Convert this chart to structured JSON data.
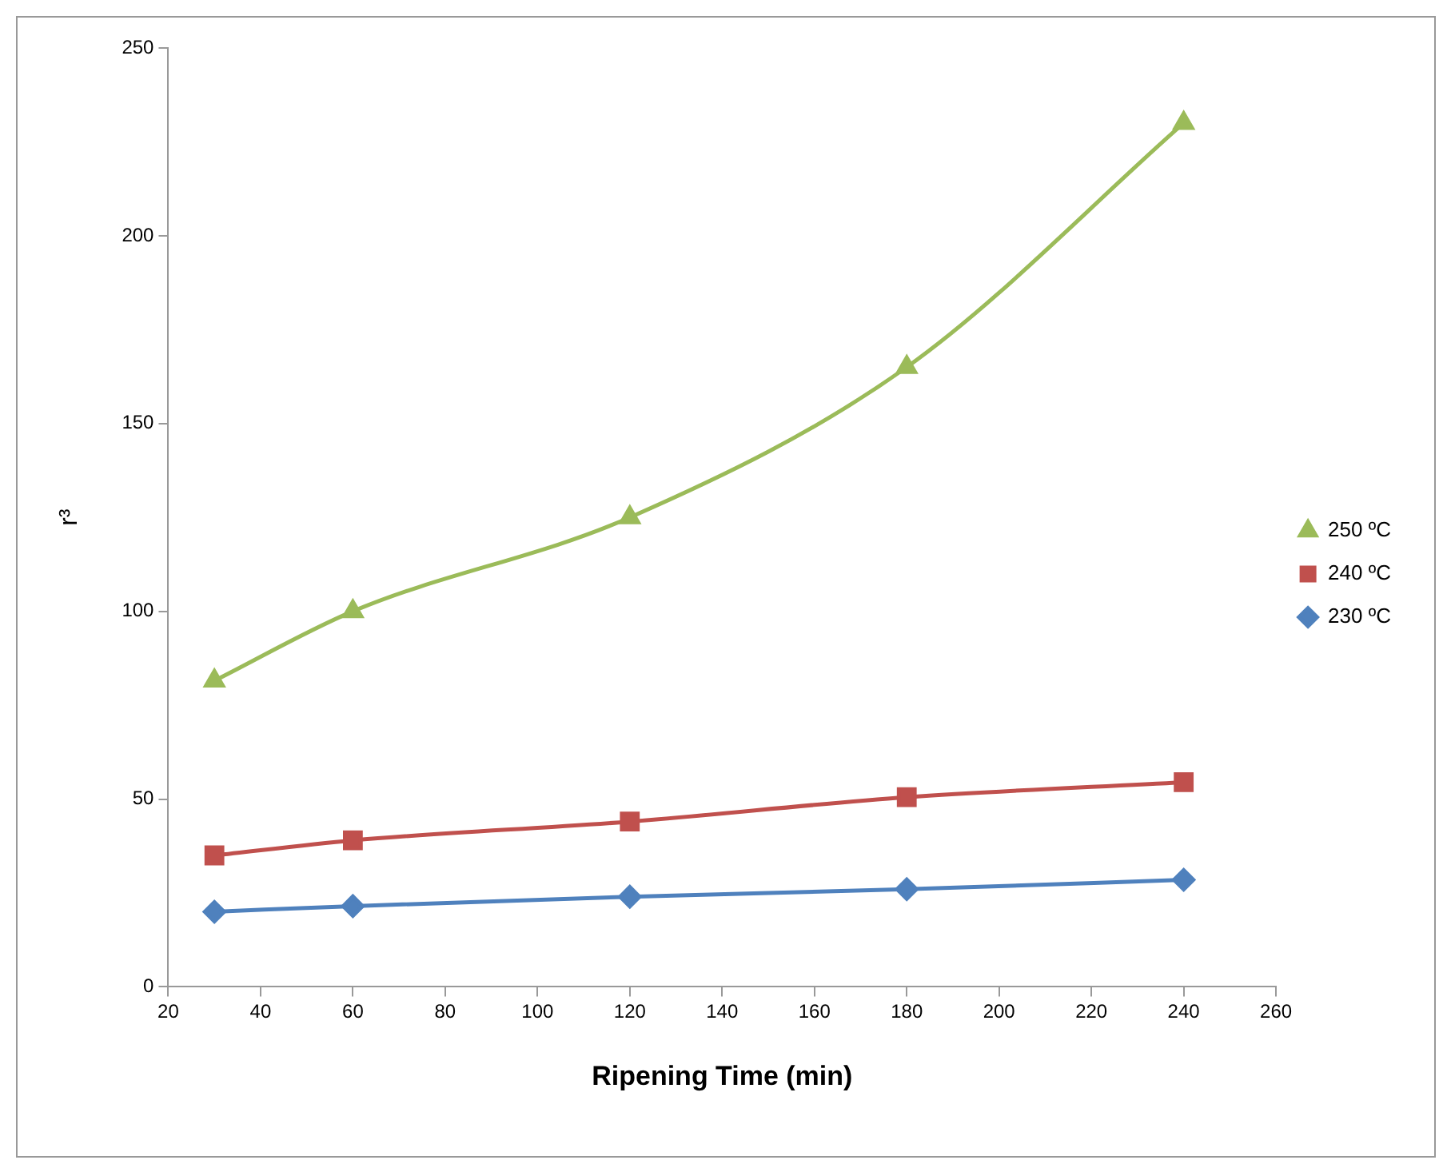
{
  "chart_data": {
    "type": "line",
    "xlabel": "Ripening Time (min)",
    "ylabel": "r³",
    "x": [
      30,
      60,
      120,
      180,
      240
    ],
    "series": [
      {
        "name": "250 ºC",
        "color": "#9bbb59",
        "marker": "triangle",
        "values": [
          81.5,
          100,
          125,
          165,
          230
        ]
      },
      {
        "name": "240 ºC",
        "color": "#c0504d",
        "marker": "square",
        "values": [
          35,
          39,
          44,
          50.5,
          54.5
        ]
      },
      {
        "name": "230 ºC",
        "color": "#4f81bd",
        "marker": "diamond",
        "values": [
          20,
          21.5,
          24,
          26,
          28.5
        ]
      }
    ],
    "xlim": [
      20,
      260
    ],
    "xticks": [
      20,
      40,
      60,
      80,
      100,
      120,
      140,
      160,
      180,
      200,
      220,
      240,
      260
    ],
    "ylim": [
      0,
      250
    ],
    "yticks": [
      0,
      50,
      100,
      150,
      200,
      250
    ],
    "grid": false,
    "legend": "right"
  }
}
